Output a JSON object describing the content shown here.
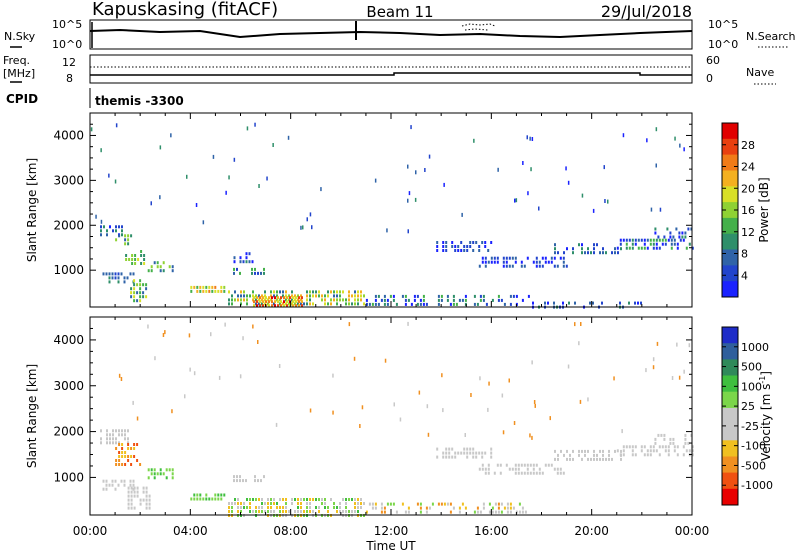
{
  "header": {
    "station": "Kapuskasing (fitACF)",
    "beam": "Beam 11",
    "date": "29/Jul/2018"
  },
  "top_panel": {
    "left_label": "N.Sky",
    "right_label": "N.Search",
    "left_ticks": [
      "10^5",
      "10^0"
    ],
    "right_ticks": [
      "10^5",
      "10^0"
    ]
  },
  "freq_panel": {
    "left_label_line1": "Freq.",
    "left_label_line2": "[MHz]",
    "right_label": "Nave",
    "left_ticks": [
      "12",
      "8"
    ],
    "right_ticks": [
      "60",
      "0"
    ]
  },
  "cpid": {
    "label": "CPID",
    "value": "themis -3300"
  },
  "chart_data": [
    {
      "type": "heatmap",
      "name": "Power",
      "ylabel": "Slant Range [km]",
      "xlabel": "Time UT",
      "x_ticks": [
        "00:00",
        "04:00",
        "08:00",
        "12:00",
        "16:00",
        "20:00",
        "00:00"
      ],
      "y_ticks": [
        1000,
        2000,
        3000,
        4000
      ],
      "xlim_hours": [
        0,
        24
      ],
      "ylim_km": [
        180,
        4500
      ],
      "colorbar": {
        "label": "Power [dB]",
        "ticks": [
          "4",
          "8",
          "12",
          "16",
          "20",
          "24",
          "28"
        ],
        "colors": [
          "#1a22ff",
          "#2244cc",
          "#2f63a8",
          "#2f8f6a",
          "#44b04a",
          "#8fd234",
          "#d8e028",
          "#f4b020",
          "#f07b18",
          "#e84010",
          "#e00000"
        ]
      },
      "regions": [
        {
          "t0": 0.4,
          "t1": 1.3,
          "r0": 1750,
          "r1": 2000,
          "dens": 0.7,
          "c0": 0,
          "c1": 3
        },
        {
          "t0": 0.5,
          "t1": 1.8,
          "r0": 750,
          "r1": 950,
          "dens": 0.6,
          "c0": 1,
          "c1": 3
        },
        {
          "t0": 1.0,
          "t1": 1.8,
          "r0": 1550,
          "r1": 1800,
          "dens": 0.55,
          "c0": 2,
          "c1": 5
        },
        {
          "t0": 1.4,
          "t1": 2.2,
          "r0": 1150,
          "r1": 1450,
          "dens": 0.55,
          "c0": 3,
          "c1": 6
        },
        {
          "t0": 1.6,
          "t1": 2.3,
          "r0": 350,
          "r1": 800,
          "dens": 0.65,
          "c0": 2,
          "c1": 6
        },
        {
          "t0": 2.3,
          "t1": 3.3,
          "r0": 1000,
          "r1": 1200,
          "dens": 0.6,
          "c0": 2,
          "c1": 5
        },
        {
          "t0": 4.0,
          "t1": 5.4,
          "r0": 560,
          "r1": 650,
          "dens": 0.9,
          "c0": 4,
          "c1": 8
        },
        {
          "t0": 5.7,
          "t1": 7.0,
          "r0": 900,
          "r1": 1050,
          "dens": 0.6,
          "c0": 1,
          "c1": 4
        },
        {
          "t0": 5.6,
          "t1": 6.5,
          "r0": 1150,
          "r1": 1400,
          "dens": 0.35,
          "c0": 0,
          "c1": 3
        },
        {
          "t0": 5.5,
          "t1": 11.0,
          "r0": 200,
          "r1": 550,
          "dens": 0.75,
          "c0": 2,
          "c1": 7
        },
        {
          "t0": 6.5,
          "t1": 8.5,
          "r0": 230,
          "r1": 420,
          "dens": 0.9,
          "c0": 6,
          "c1": 10
        },
        {
          "t0": 11.0,
          "t1": 17.5,
          "r0": 200,
          "r1": 450,
          "dens": 0.45,
          "c0": 0,
          "c1": 4
        },
        {
          "t0": 17.5,
          "t1": 22.0,
          "r0": 200,
          "r1": 300,
          "dens": 0.3,
          "c0": 0,
          "c1": 3
        },
        {
          "t0": 13.8,
          "t1": 16.0,
          "r0": 1450,
          "r1": 1650,
          "dens": 0.55,
          "c0": 0,
          "c1": 2
        },
        {
          "t0": 15.5,
          "t1": 19.0,
          "r0": 1100,
          "r1": 1300,
          "dens": 0.5,
          "c0": 0,
          "c1": 2
        },
        {
          "t0": 18.5,
          "t1": 21.2,
          "r0": 1400,
          "r1": 1600,
          "dens": 0.55,
          "c0": 0,
          "c1": 3
        },
        {
          "t0": 21.0,
          "t1": 24.0,
          "r0": 1450,
          "r1": 1700,
          "dens": 0.6,
          "c0": 0,
          "c1": 4
        },
        {
          "t0": 22.5,
          "t1": 24.0,
          "r0": 1700,
          "r1": 1950,
          "dens": 0.45,
          "c0": 0,
          "c1": 3
        }
      ]
    },
    {
      "type": "heatmap",
      "name": "Velocity",
      "ylabel": "Slant Range [km]",
      "xlabel": "Time UT",
      "x_ticks": [
        "00:00",
        "04:00",
        "08:00",
        "12:00",
        "16:00",
        "20:00",
        "00:00"
      ],
      "y_ticks": [
        1000,
        2000,
        3000,
        4000
      ],
      "xlim_hours": [
        0,
        24
      ],
      "ylim_km": [
        180,
        4500
      ],
      "colorbar": {
        "label": "Velocity [m s",
        "label_exp": "-1",
        "label_close": "]",
        "ticks": [
          "1000",
          "500",
          "100",
          "25",
          "-25",
          "-100",
          "-500",
          "-1000"
        ],
        "colors": [
          "#1e2cc8",
          "#2f5f9c",
          "#2f8a5a",
          "#3fbf3f",
          "#7bd64a",
          "#c8c8c8",
          "#c8c8c8",
          "#f0c020",
          "#f09020",
          "#f05010",
          "#e80000"
        ]
      },
      "regions": [
        {
          "t0": 0.4,
          "t1": 1.5,
          "r0": 1750,
          "r1": 2050,
          "dens": 0.7,
          "c0": 5,
          "c1": 6
        },
        {
          "t0": 0.5,
          "t1": 1.8,
          "r0": 750,
          "r1": 950,
          "dens": 0.6,
          "c0": 5,
          "c1": 6
        },
        {
          "t0": 1.0,
          "t1": 2.0,
          "r0": 1300,
          "r1": 1750,
          "dens": 0.5,
          "c0": 7,
          "c1": 9
        },
        {
          "t0": 1.5,
          "t1": 2.4,
          "r0": 350,
          "r1": 800,
          "dens": 0.7,
          "c0": 5,
          "c1": 6
        },
        {
          "t0": 2.3,
          "t1": 3.3,
          "r0": 1000,
          "r1": 1200,
          "dens": 0.6,
          "c0": 3,
          "c1": 4
        },
        {
          "t0": 4.0,
          "t1": 5.4,
          "r0": 560,
          "r1": 650,
          "dens": 0.9,
          "c0": 3,
          "c1": 4
        },
        {
          "t0": 5.7,
          "t1": 7.0,
          "r0": 900,
          "r1": 1050,
          "dens": 0.6,
          "c0": 5,
          "c1": 6
        },
        {
          "t0": 5.5,
          "t1": 11.0,
          "r0": 200,
          "r1": 550,
          "dens": 0.75,
          "c0": 3,
          "c1": 7
        },
        {
          "t0": 11.0,
          "t1": 17.5,
          "r0": 200,
          "r1": 450,
          "dens": 0.45,
          "c0": 4,
          "c1": 8
        },
        {
          "t0": 13.8,
          "t1": 16.0,
          "r0": 1450,
          "r1": 1650,
          "dens": 0.55,
          "c0": 5,
          "c1": 6
        },
        {
          "t0": 15.5,
          "t1": 19.0,
          "r0": 1100,
          "r1": 1300,
          "dens": 0.5,
          "c0": 5,
          "c1": 6
        },
        {
          "t0": 18.5,
          "t1": 21.2,
          "r0": 1400,
          "r1": 1600,
          "dens": 0.55,
          "c0": 5,
          "c1": 6
        },
        {
          "t0": 21.0,
          "t1": 24.0,
          "r0": 1450,
          "r1": 1700,
          "dens": 0.6,
          "c0": 5,
          "c1": 6
        },
        {
          "t0": 22.5,
          "t1": 24.0,
          "r0": 1700,
          "r1": 1950,
          "dens": 0.45,
          "c0": 5,
          "c1": 6
        }
      ]
    }
  ]
}
